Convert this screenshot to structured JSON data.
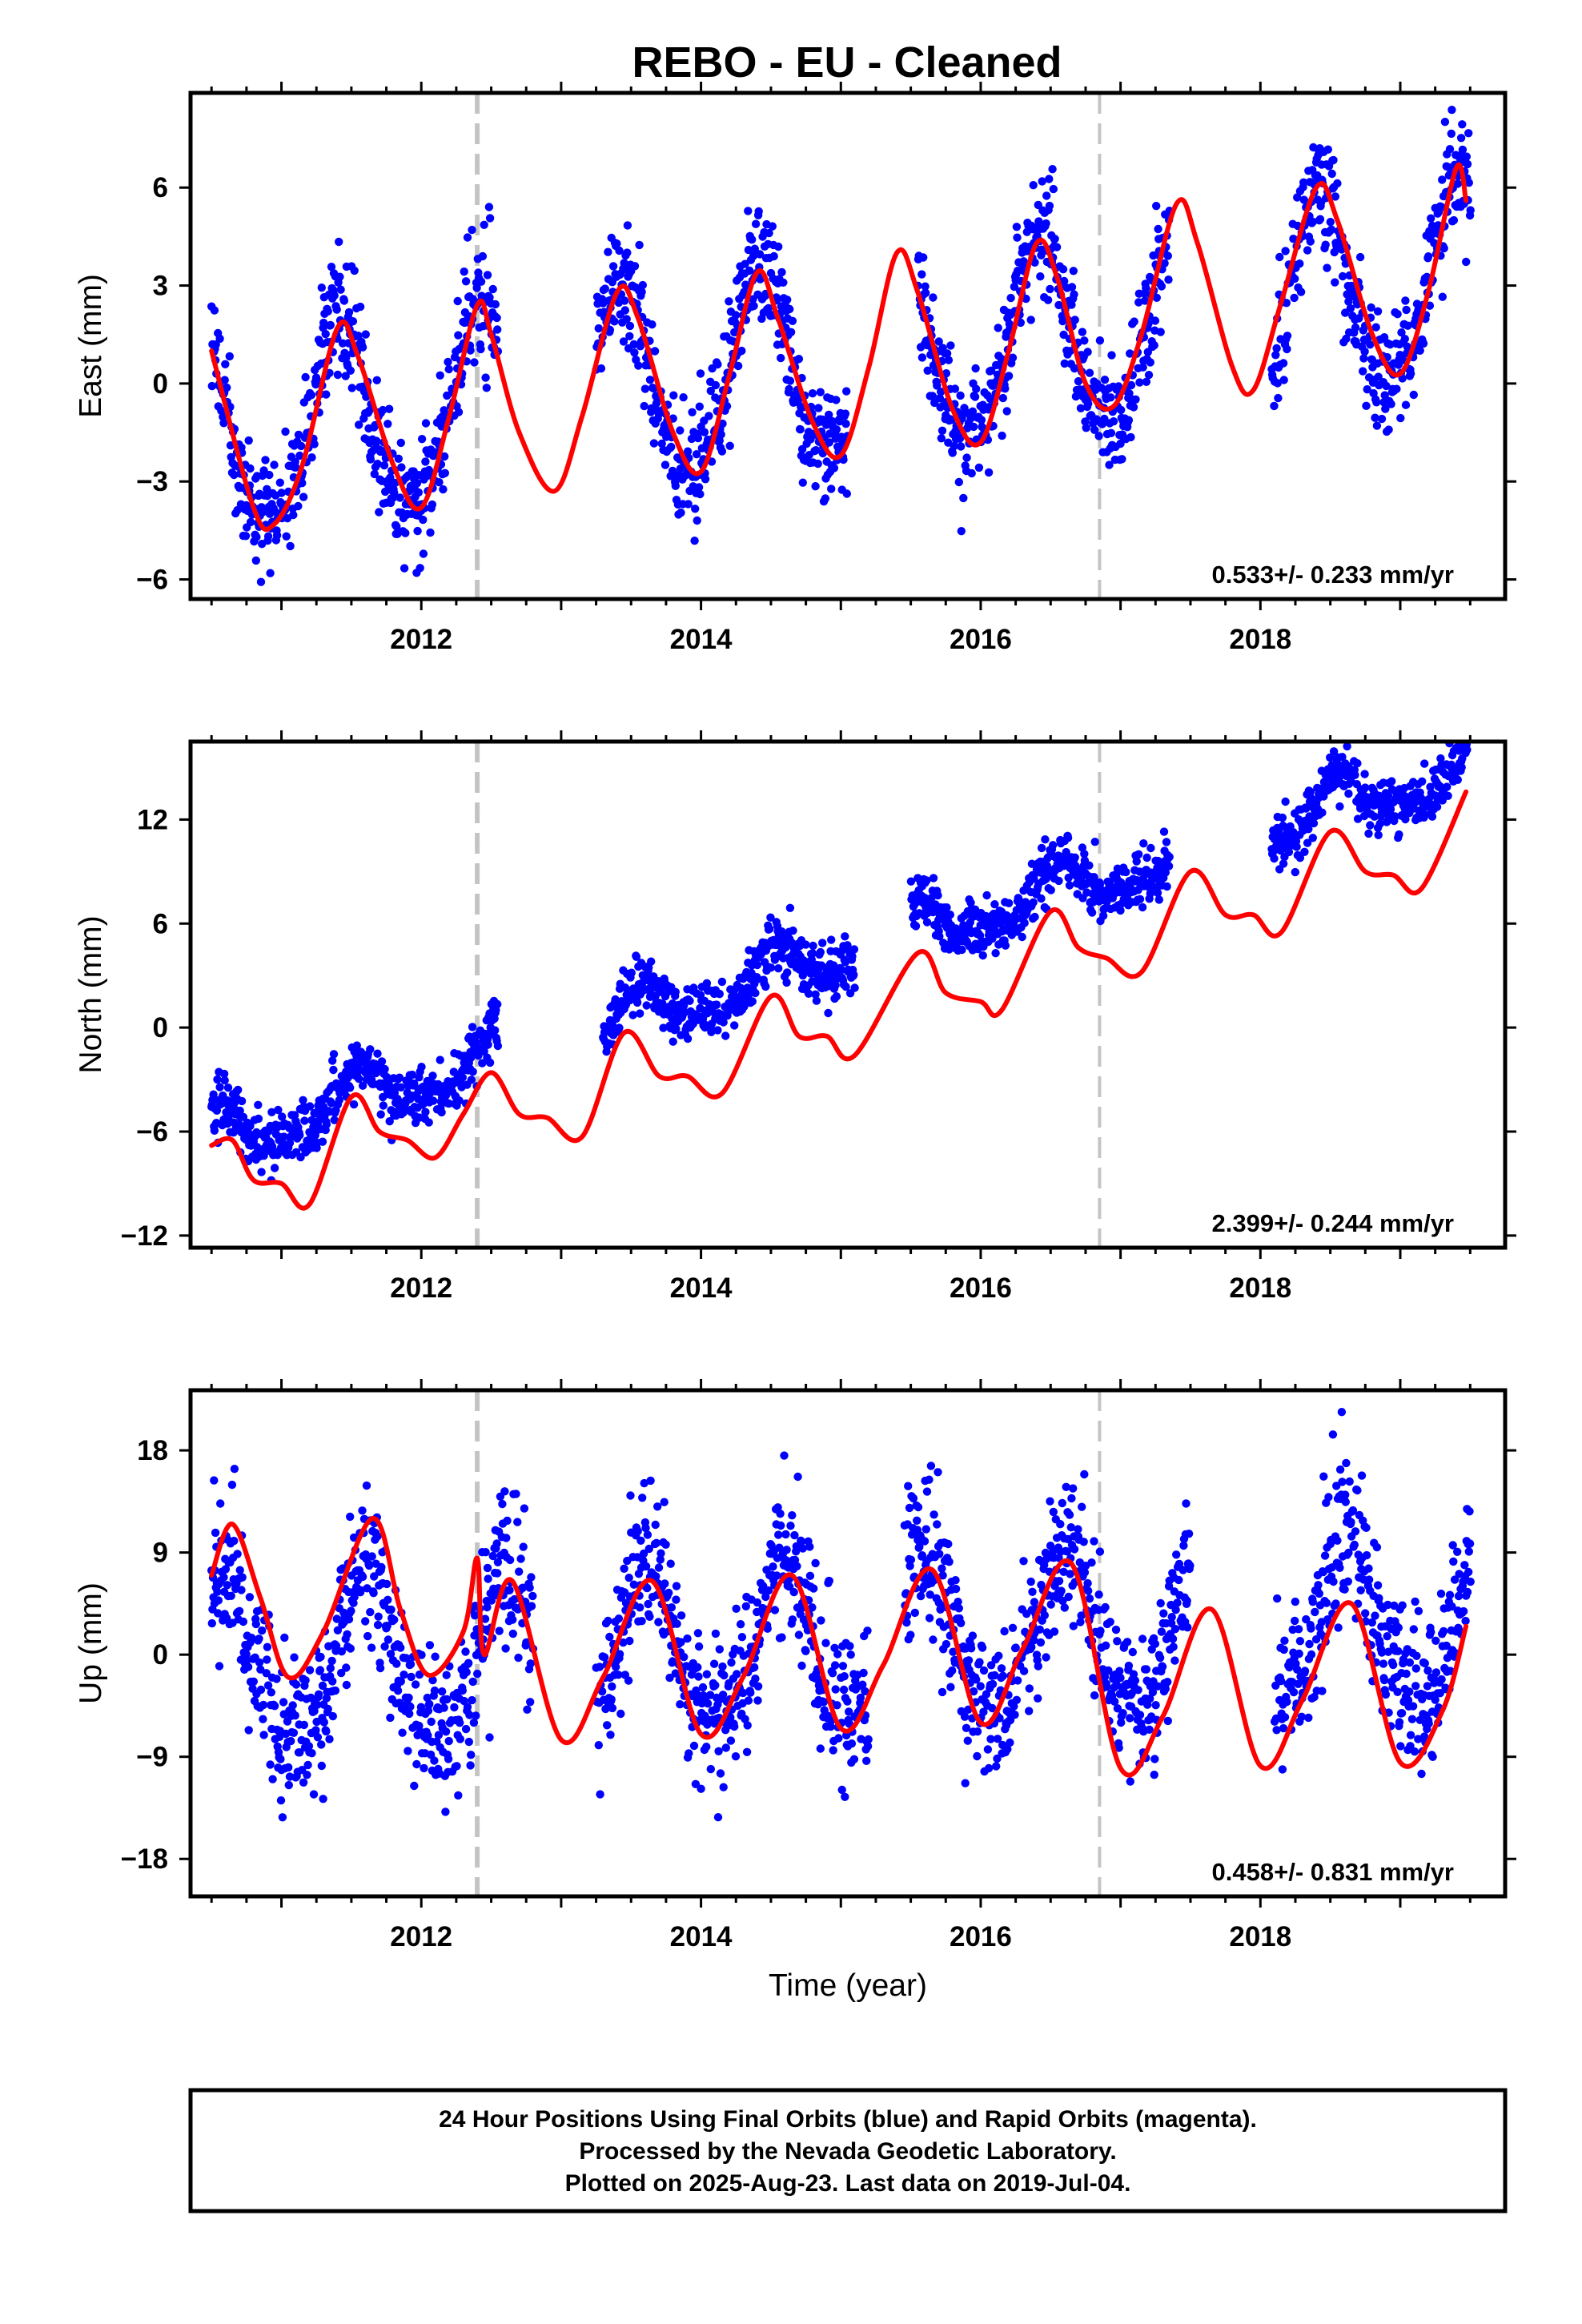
{
  "title": "REBO  - EU - Cleaned",
  "colors": {
    "points": "#0000ff",
    "fit": "#ff0000",
    "event_line": "#c4c4c4",
    "frame": "#000000"
  },
  "chart_data": [
    {
      "type": "scatter",
      "ylabel": "East (mm)",
      "xlabel": "",
      "xlim": [
        2010.35,
        2019.75
      ],
      "ylim": [
        -6.6,
        8.9
      ],
      "x_ticks": [
        2012,
        2014,
        2016,
        2018
      ],
      "y_ticks": [
        -6,
        -3,
        0,
        3,
        6
      ],
      "y_tick_labels": [
        "−6",
        "−3",
        "0",
        "3",
        "6"
      ],
      "event_lines": [
        2012.4,
        2016.85
      ],
      "rate_label": "0.533+/- 0.233 mm/yr",
      "rate": 0.533,
      "seasonal": {
        "bias": -0.9,
        "annual_amp": 3.0,
        "annual_peak": 2012.42,
        "semi_amp": 0.4,
        "noise": 0.9
      },
      "data_gaps": [
        [
          2012.55,
          2013.25
        ],
        [
          2015.05,
          2015.55
        ],
        [
          2017.35,
          2018.08
        ]
      ],
      "fit_curve": [
        [
          2010.5,
          1.0
        ],
        [
          2010.8,
          -3.8
        ],
        [
          2010.95,
          -4.3
        ],
        [
          2011.15,
          -2.5
        ],
        [
          2011.4,
          1.7
        ],
        [
          2011.55,
          0.8
        ],
        [
          2011.8,
          -2.5
        ],
        [
          2012.0,
          -3.8
        ],
        [
          2012.2,
          -1.0
        ],
        [
          2012.4,
          2.4
        ],
        [
          2012.5,
          1.5
        ],
        [
          2012.7,
          -1.5
        ],
        [
          2012.95,
          -3.3
        ],
        [
          2013.15,
          -1.0
        ],
        [
          2013.4,
          2.8
        ],
        [
          2013.55,
          2.0
        ],
        [
          2013.8,
          -1.5
        ],
        [
          2014.0,
          -2.7
        ],
        [
          2014.2,
          0.2
        ],
        [
          2014.4,
          3.4
        ],
        [
          2014.55,
          2.0
        ],
        [
          2014.8,
          -1.2
        ],
        [
          2015.0,
          -2.2
        ],
        [
          2015.2,
          0.5
        ],
        [
          2015.4,
          4.0
        ],
        [
          2015.55,
          2.8
        ],
        [
          2015.8,
          -0.8
        ],
        [
          2016.0,
          -1.8
        ],
        [
          2016.2,
          1.0
        ],
        [
          2016.4,
          4.3
        ],
        [
          2016.55,
          3.2
        ],
        [
          2016.75,
          0.0
        ],
        [
          2016.95,
          -0.7
        ],
        [
          2017.15,
          1.5
        ],
        [
          2017.4,
          5.5
        ],
        [
          2017.55,
          4.3
        ],
        [
          2017.8,
          0.5
        ],
        [
          2017.95,
          -0.2
        ],
        [
          2018.15,
          2.5
        ],
        [
          2018.4,
          6.0
        ],
        [
          2018.55,
          5.0
        ],
        [
          2018.8,
          1.5
        ],
        [
          2019.0,
          0.3
        ],
        [
          2019.2,
          2.8
        ],
        [
          2019.4,
          6.6
        ],
        [
          2019.47,
          5.6
        ]
      ]
    },
    {
      "type": "scatter",
      "ylabel": "North (mm)",
      "xlabel": "",
      "xlim": [
        2010.35,
        2019.75
      ],
      "ylim": [
        -12.7,
        16.5
      ],
      "x_ticks": [
        2012,
        2014,
        2016,
        2018
      ],
      "y_ticks": [
        -12,
        -6,
        0,
        6,
        12
      ],
      "y_tick_labels": [
        "−12",
        "−6",
        "0",
        "6",
        "12"
      ],
      "event_lines": [
        2012.4,
        2016.85
      ],
      "rate_label": "2.399+/- 0.244 mm/yr",
      "rate": 2.399,
      "seasonal": {
        "bias": -3.0,
        "annual_amp": 1.4,
        "annual_peak": 2012.55,
        "semi_amp": 0.5,
        "noise": 0.8
      },
      "data_gaps": [
        [
          2012.55,
          2013.3
        ],
        [
          2015.1,
          2015.5
        ],
        [
          2017.35,
          2018.08
        ]
      ],
      "fit_curve": [
        [
          2010.5,
          -6.8
        ],
        [
          2010.65,
          -6.5
        ],
        [
          2010.8,
          -8.8
        ],
        [
          2011.0,
          -9.0
        ],
        [
          2011.2,
          -10.2
        ],
        [
          2011.5,
          -4.0
        ],
        [
          2011.7,
          -6.0
        ],
        [
          2011.9,
          -6.5
        ],
        [
          2012.1,
          -7.5
        ],
        [
          2012.3,
          -5.0
        ],
        [
          2012.5,
          -2.6
        ],
        [
          2012.7,
          -5.0
        ],
        [
          2012.9,
          -5.2
        ],
        [
          2013.15,
          -6.3
        ],
        [
          2013.45,
          -0.3
        ],
        [
          2013.7,
          -2.8
        ],
        [
          2013.9,
          -2.8
        ],
        [
          2014.15,
          -3.8
        ],
        [
          2014.5,
          1.8
        ],
        [
          2014.7,
          -0.5
        ],
        [
          2014.9,
          -0.5
        ],
        [
          2015.1,
          -1.6
        ],
        [
          2015.55,
          4.3
        ],
        [
          2015.75,
          2.0
        ],
        [
          2016.0,
          1.5
        ],
        [
          2016.15,
          1.0
        ],
        [
          2016.5,
          6.7
        ],
        [
          2016.7,
          4.6
        ],
        [
          2016.9,
          4.0
        ],
        [
          2017.15,
          3.2
        ],
        [
          2017.5,
          9.0
        ],
        [
          2017.75,
          6.5
        ],
        [
          2017.95,
          6.5
        ],
        [
          2018.15,
          5.5
        ],
        [
          2018.5,
          11.3
        ],
        [
          2018.75,
          9.0
        ],
        [
          2018.95,
          8.8
        ],
        [
          2019.15,
          8.0
        ],
        [
          2019.47,
          13.6
        ]
      ]
    },
    {
      "type": "scatter",
      "ylabel": "Up (mm)",
      "xlabel": "Time (year)",
      "xlim": [
        2010.35,
        2019.75
      ],
      "ylim": [
        -21.3,
        23.3
      ],
      "x_ticks": [
        2012,
        2014,
        2016,
        2018
      ],
      "y_ticks": [
        -18,
        -9,
        0,
        9,
        18
      ],
      "y_tick_labels": [
        "−18",
        "−9",
        "0",
        "9",
        "18"
      ],
      "event_lines": [
        2012.4,
        2016.85
      ],
      "rate_label": "0.458+/- 0.831 mm/yr",
      "rate": 0.458,
      "seasonal": {
        "bias": -0.5,
        "annual_amp": 7.2,
        "annual_peak": 2012.6,
        "semi_amp": 1.0,
        "noise": 3.4
      },
      "data_gaps": [
        [
          2012.8,
          2013.25
        ],
        [
          2015.2,
          2015.45
        ],
        [
          2017.5,
          2018.1
        ]
      ],
      "fit_curve": [
        [
          2010.5,
          7.0
        ],
        [
          2010.65,
          11.5
        ],
        [
          2010.85,
          5.0
        ],
        [
          2011.05,
          -2.0
        ],
        [
          2011.3,
          2.0
        ],
        [
          2011.65,
          12.0
        ],
        [
          2011.85,
          4.0
        ],
        [
          2012.05,
          -1.8
        ],
        [
          2012.3,
          2.0
        ],
        [
          2012.4,
          8.5
        ],
        [
          2012.45,
          0.0
        ],
        [
          2012.65,
          6.5
        ],
        [
          2013.0,
          -7.5
        ],
        [
          2013.3,
          -2.0
        ],
        [
          2013.65,
          6.5
        ],
        [
          2014.0,
          -7.0
        ],
        [
          2014.3,
          -2.0
        ],
        [
          2014.65,
          7.0
        ],
        [
          2015.0,
          -6.5
        ],
        [
          2015.3,
          -1.0
        ],
        [
          2015.65,
          7.5
        ],
        [
          2016.0,
          -6.0
        ],
        [
          2016.3,
          0.5
        ],
        [
          2016.65,
          8.0
        ],
        [
          2017.0,
          -10.0
        ],
        [
          2017.3,
          -5.5
        ],
        [
          2017.65,
          4.0
        ],
        [
          2018.0,
          -9.8
        ],
        [
          2018.3,
          -4.0
        ],
        [
          2018.65,
          4.5
        ],
        [
          2019.0,
          -9.5
        ],
        [
          2019.3,
          -5.0
        ],
        [
          2019.47,
          2.5
        ]
      ]
    }
  ],
  "footer": {
    "line1": "24 Hour Positions Using Final Orbits (blue) and Rapid Orbits (magenta).",
    "line2": "Processed by the Nevada Geodetic Laboratory.",
    "line3": "Plotted on 2025-Aug-23. Last data on 2019-Jul-04."
  }
}
